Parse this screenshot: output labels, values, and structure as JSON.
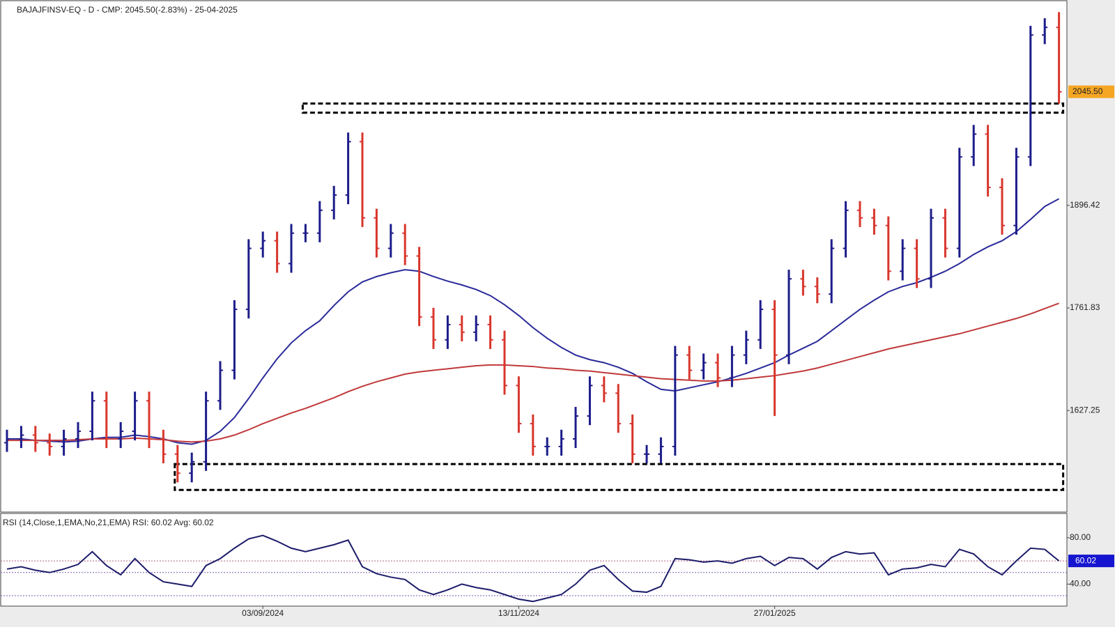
{
  "chart_data": {
    "type": "ohlc",
    "title": "BAJAJFINSV-EQ - D - CMP: 2045.50(-2.83%) - 25-04-2025",
    "categories": [
      null,
      null,
      null,
      null,
      null,
      null,
      null,
      null,
      null,
      null,
      null,
      null,
      null,
      null,
      null,
      null,
      null,
      null,
      "03/09/2024",
      null,
      null,
      null,
      null,
      null,
      null,
      null,
      null,
      null,
      null,
      null,
      null,
      null,
      null,
      null,
      null,
      null,
      "13/11/2024",
      null,
      null,
      null,
      null,
      null,
      null,
      null,
      null,
      null,
      null,
      null,
      null,
      null,
      null,
      null,
      null,
      null,
      "27/01/2025",
      null,
      null,
      null,
      null,
      null,
      null,
      null,
      null,
      null,
      null,
      null,
      null,
      null,
      null,
      null,
      null,
      null,
      null,
      null,
      null
    ],
    "open": [
      1585,
      1590,
      1595,
      1585,
      1580,
      1590,
      1600,
      1640,
      1590,
      1600,
      1640,
      1590,
      1570,
      1545,
      1560,
      1640,
      1680,
      1760,
      1840,
      1850,
      1820,
      1860,
      1860,
      1890,
      1910,
      1980,
      1880,
      1840,
      1860,
      1830,
      1750,
      1720,
      1740,
      1730,
      1740,
      1720,
      1660,
      1610,
      1580,
      1580,
      1590,
      1620,
      1660,
      1650,
      1610,
      1570,
      1570,
      1580,
      1700,
      1680,
      1690,
      1670,
      1700,
      1720,
      1760,
      1700,
      1800,
      1790,
      1780,
      1840,
      1890,
      1880,
      1870,
      1810,
      1840,
      1800,
      1880,
      1840,
      1960,
      1990,
      1920,
      1870,
      1960,
      2120,
      2130
    ],
    "high": [
      1602,
      1607,
      1607,
      1597,
      1602,
      1612,
      1652,
      1652,
      1612,
      1652,
      1652,
      1602,
      1582,
      1572,
      1652,
      1692,
      1772,
      1852,
      1862,
      1862,
      1872,
      1872,
      1902,
      1922,
      1992,
      1992,
      1892,
      1872,
      1872,
      1842,
      1762,
      1752,
      1752,
      1752,
      1752,
      1732,
      1672,
      1622,
      1592,
      1602,
      1632,
      1672,
      1672,
      1662,
      1622,
      1582,
      1592,
      1712,
      1712,
      1702,
      1702,
      1712,
      1732,
      1772,
      1772,
      1812,
      1812,
      1802,
      1852,
      1902,
      1902,
      1892,
      1882,
      1852,
      1852,
      1892,
      1892,
      1972,
      2002,
      2002,
      1932,
      1972,
      2132,
      2142,
      2150
    ],
    "low": [
      1573,
      1578,
      1573,
      1568,
      1568,
      1578,
      1588,
      1578,
      1578,
      1588,
      1578,
      1558,
      1533,
      1533,
      1548,
      1628,
      1668,
      1748,
      1828,
      1808,
      1808,
      1848,
      1848,
      1878,
      1898,
      1868,
      1828,
      1828,
      1818,
      1738,
      1708,
      1708,
      1718,
      1718,
      1708,
      1648,
      1598,
      1568,
      1568,
      1568,
      1578,
      1608,
      1638,
      1598,
      1558,
      1558,
      1558,
      1568,
      1668,
      1668,
      1658,
      1658,
      1688,
      1708,
      1620,
      1688,
      1778,
      1768,
      1768,
      1828,
      1868,
      1858,
      1798,
      1798,
      1788,
      1788,
      1828,
      1828,
      1948,
      1908,
      1858,
      1858,
      1948,
      2108,
      2030
    ],
    "close": [
      1590,
      1595,
      1585,
      1580,
      1590,
      1600,
      1640,
      1590,
      1600,
      1640,
      1590,
      1570,
      1545,
      1560,
      1640,
      1680,
      1760,
      1840,
      1850,
      1820,
      1860,
      1860,
      1890,
      1910,
      1980,
      1880,
      1840,
      1860,
      1830,
      1750,
      1720,
      1740,
      1730,
      1740,
      1720,
      1660,
      1610,
      1580,
      1580,
      1590,
      1620,
      1660,
      1650,
      1610,
      1570,
      1570,
      1580,
      1700,
      1680,
      1690,
      1670,
      1700,
      1720,
      1760,
      1700,
      1800,
      1790,
      1780,
      1840,
      1890,
      1880,
      1870,
      1810,
      1840,
      1800,
      1880,
      1840,
      1960,
      1990,
      1920,
      1870,
      1960,
      2120,
      2130,
      2045.5
    ],
    "up_color": "#1c1c8a",
    "down_color": "#d8362c",
    "ylim": [
      1494,
      2165
    ],
    "yticks": [
      1627.25,
      1761.83,
      1896.42
    ],
    "last_price": {
      "value": 2045.5,
      "label": "2045.50"
    },
    "moving_averages": [
      {
        "color": "#2a2a9a",
        "values": [
          1590,
          1590,
          1588,
          1587,
          1586,
          1587,
          1590,
          1592,
          1592,
          1595,
          1593,
          1590,
          1585,
          1583,
          1588,
          1600,
          1618,
          1643,
          1670,
          1695,
          1716,
          1732,
          1745,
          1765,
          1783,
          1796,
          1803,
          1808,
          1812,
          1810,
          1803,
          1797,
          1792,
          1786,
          1778,
          1766,
          1752,
          1736,
          1722,
          1710,
          1700,
          1694,
          1690,
          1684,
          1676,
          1665,
          1655,
          1653,
          1657,
          1661,
          1665,
          1670,
          1676,
          1683,
          1690,
          1700,
          1709,
          1718,
          1732,
          1746,
          1760,
          1772,
          1783,
          1790,
          1795,
          1802,
          1810,
          1820,
          1832,
          1842,
          1850,
          1862,
          1878,
          1895,
          1905
        ]
      },
      {
        "color": "#c0393b",
        "values": [
          1588,
          1588,
          1588,
          1588,
          1588,
          1589,
          1590,
          1590,
          1590,
          1591,
          1590,
          1589,
          1587,
          1586,
          1587,
          1590,
          1595,
          1602,
          1610,
          1617,
          1624,
          1630,
          1637,
          1644,
          1652,
          1659,
          1665,
          1670,
          1675,
          1678,
          1680,
          1682,
          1684,
          1686,
          1687,
          1687,
          1686,
          1685,
          1683,
          1682,
          1680,
          1679,
          1677,
          1675,
          1673,
          1671,
          1669,
          1668,
          1667,
          1666,
          1666,
          1667,
          1669,
          1671,
          1673,
          1676,
          1679,
          1683,
          1688,
          1693,
          1698,
          1703,
          1708,
          1712,
          1716,
          1720,
          1724,
          1728,
          1733,
          1738,
          1743,
          1748,
          1754,
          1761,
          1768
        ]
      }
    ],
    "zones": [
      {
        "low": 2018,
        "high": 2030,
        "from": 21,
        "to": 74
      },
      {
        "low": 1523,
        "high": 1557,
        "from": 12,
        "to": 74
      }
    ],
    "rsi": {
      "title": "RSI (14,Close,1,EMA,No,21,EMA) RSI: 60.02 Avg: 60.02",
      "color": "#1c1c6a",
      "values": [
        53,
        55,
        52,
        50,
        53,
        57,
        68,
        56,
        48,
        62,
        50,
        42,
        40,
        38,
        56,
        62,
        71,
        79,
        82,
        77,
        71,
        68,
        71,
        74,
        78,
        55,
        49,
        46,
        44,
        35,
        31,
        35,
        40,
        37,
        35,
        31,
        27,
        25,
        28,
        31,
        40,
        52,
        56,
        44,
        34,
        33,
        38,
        62,
        61,
        59,
        60,
        58,
        62,
        64,
        56,
        63,
        62,
        53,
        63,
        68,
        66,
        67,
        48,
        53,
        54,
        57,
        55,
        70,
        66,
        55,
        48,
        60,
        71,
        70,
        60.02
      ],
      "ylim": [
        21,
        101
      ],
      "yticks": [
        {
          "value": 80,
          "label": "80.00"
        },
        {
          "value": 40,
          "label": "40.00"
        }
      ],
      "levels": [
        60,
        50,
        30
      ]
    }
  }
}
